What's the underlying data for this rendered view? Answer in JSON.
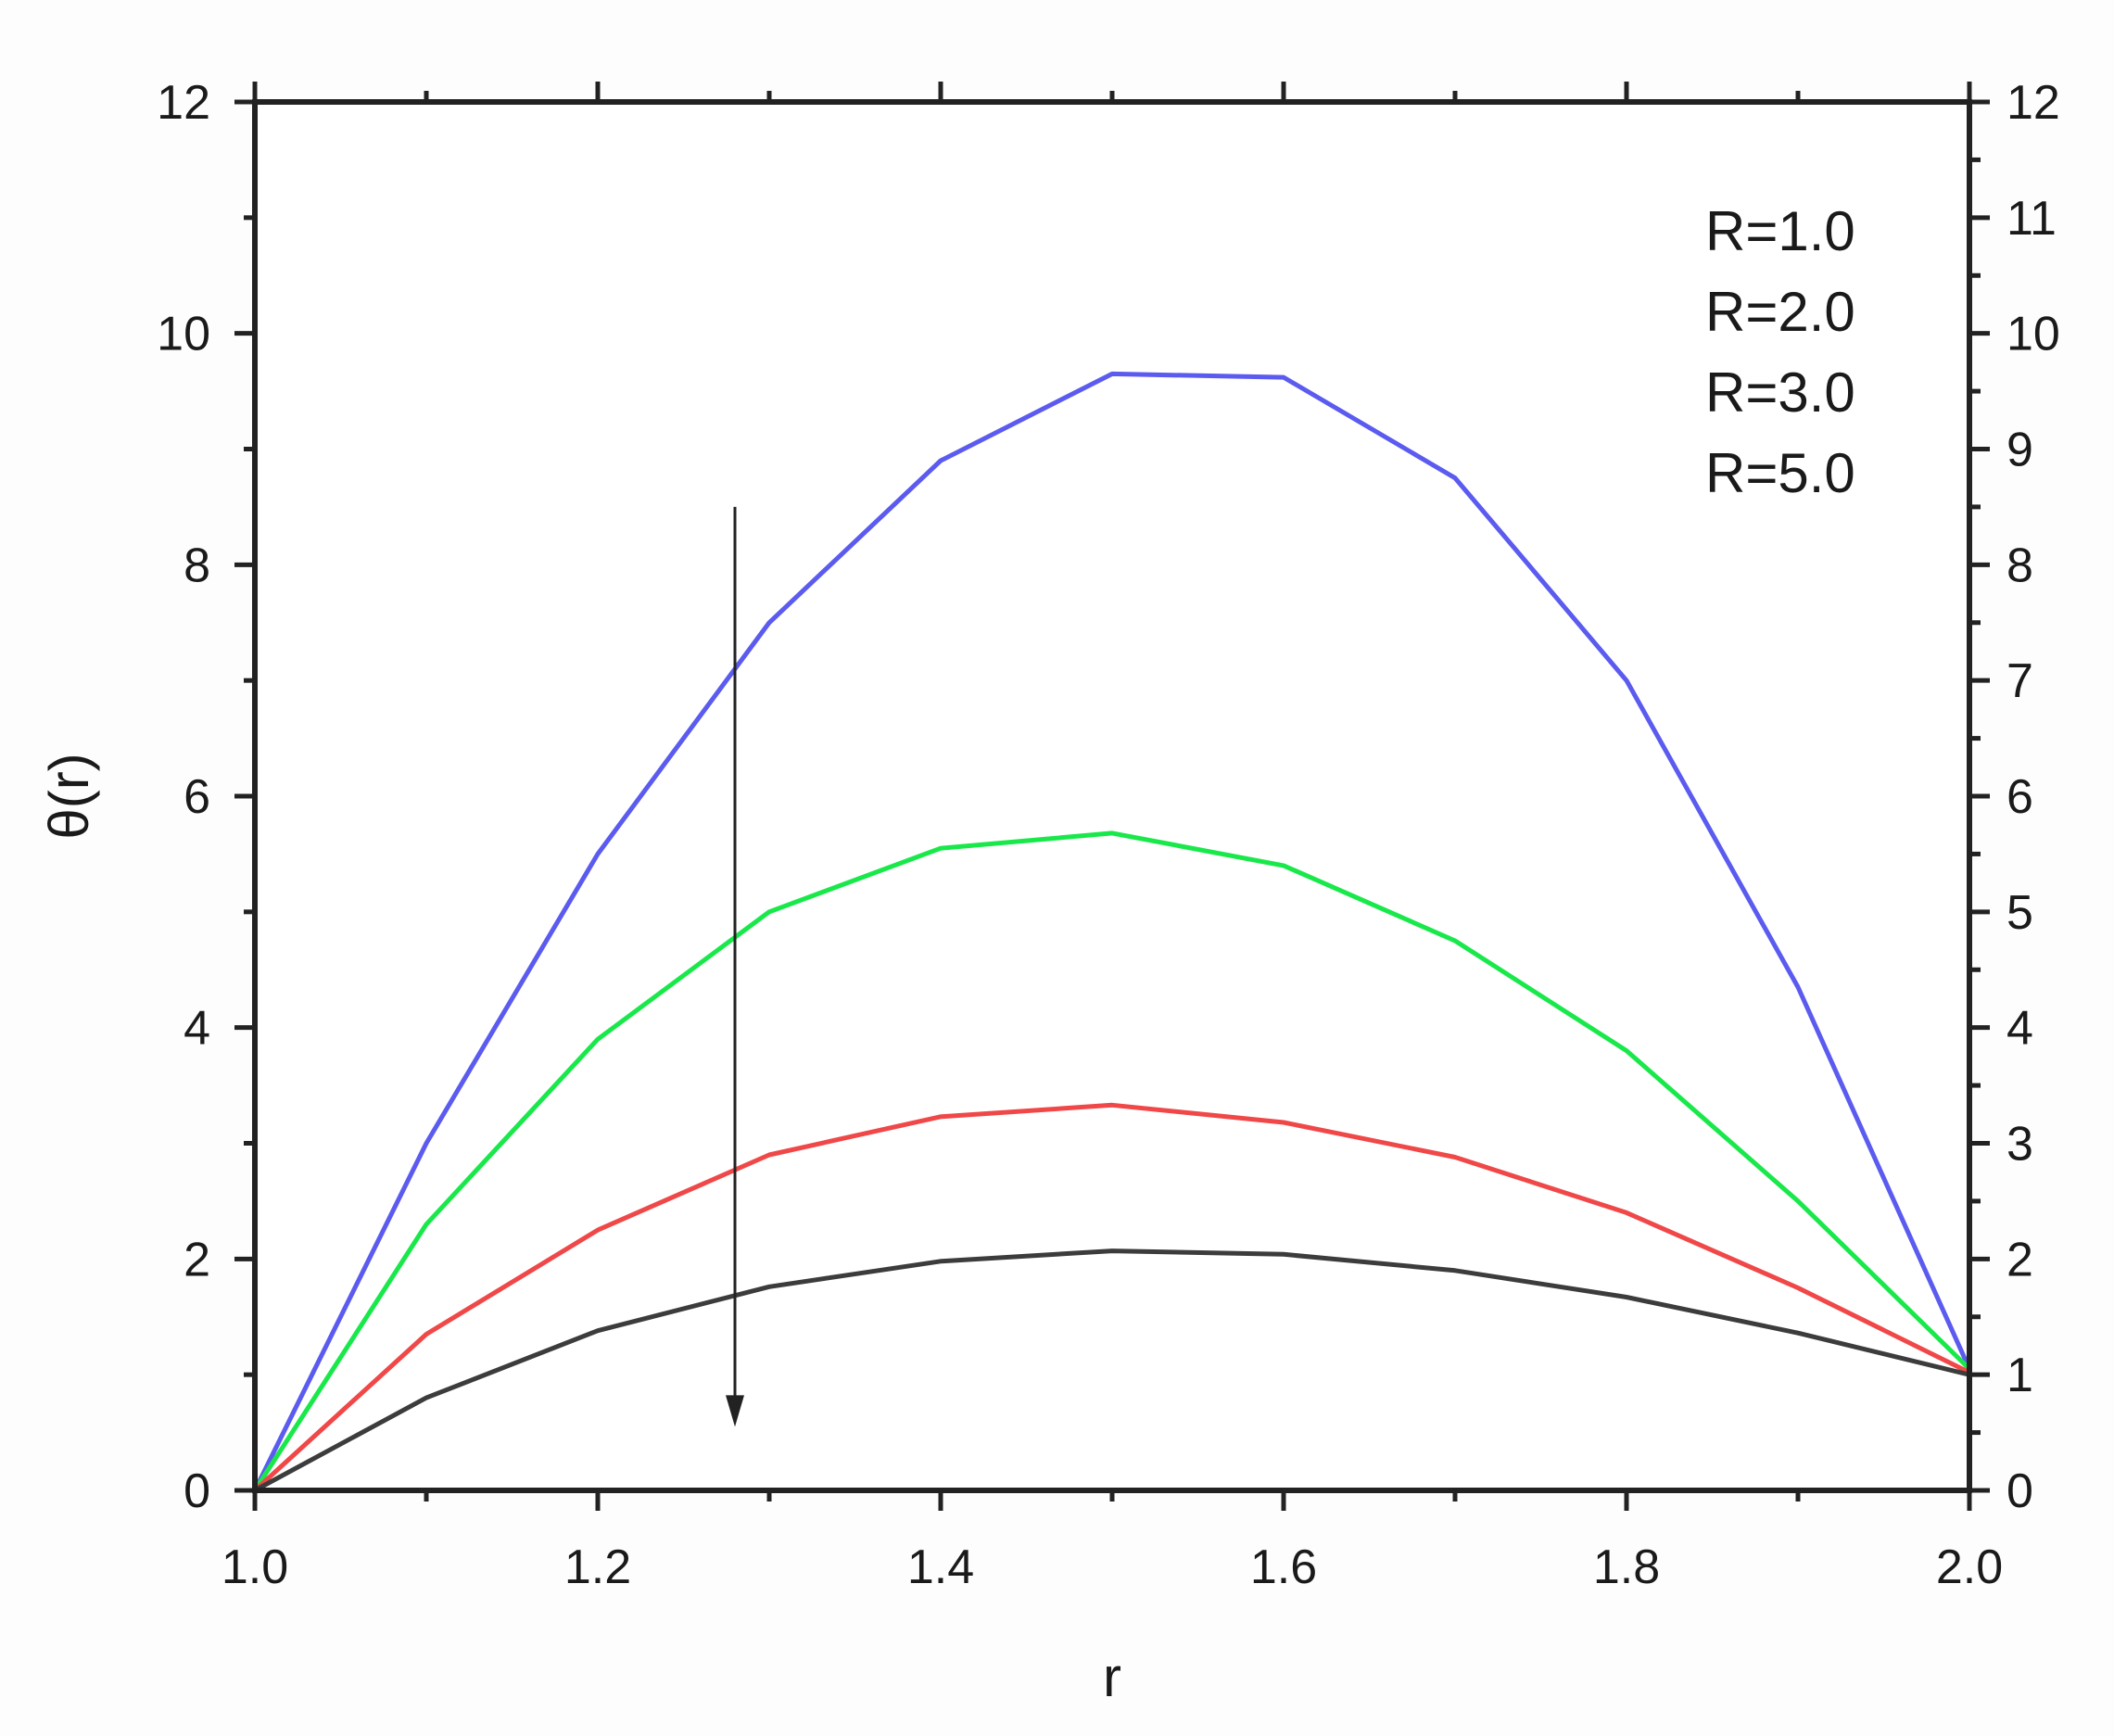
{
  "chart_data": {
    "type": "line",
    "title": "",
    "xlabel": "r",
    "ylabel": "θ(r)",
    "xlim": [
      1.0,
      2.0
    ],
    "ylim": [
      0,
      12
    ],
    "y2lim": [
      0,
      12
    ],
    "grid": false,
    "legend_position": "top-right",
    "x_ticks": [
      "1.0",
      "1.2",
      "1.4",
      "1.6",
      "1.8",
      "2.0"
    ],
    "x_tick_values": [
      1.0,
      1.2,
      1.4,
      1.6,
      1.8,
      2.0
    ],
    "y_ticks": [
      "0",
      "2",
      "4",
      "6",
      "8",
      "10",
      "12"
    ],
    "y_tick_values": [
      0,
      2,
      4,
      6,
      8,
      10,
      12
    ],
    "y2_ticks": [
      "0",
      "1",
      "2",
      "3",
      "4",
      "5",
      "6",
      "7",
      "8",
      "9",
      "10",
      "11",
      "12"
    ],
    "y2_tick_values": [
      0,
      1,
      2,
      3,
      4,
      5,
      6,
      7,
      8,
      9,
      10,
      11,
      12
    ],
    "x": [
      1.0,
      1.1,
      1.2,
      1.3,
      1.4,
      1.5,
      1.6,
      1.7,
      1.8,
      1.9,
      2.0
    ],
    "series": [
      {
        "name": "R=1.0",
        "color": "#5b5bf0",
        "values": [
          0.0,
          3.0,
          5.5,
          7.5,
          8.9,
          9.65,
          9.62,
          8.75,
          7.0,
          4.35,
          1.05
        ]
      },
      {
        "name": "R=2.0",
        "color": "#19e84a",
        "values": [
          0.0,
          2.3,
          3.9,
          5.0,
          5.55,
          5.68,
          5.4,
          4.75,
          3.8,
          2.5,
          1.05
        ]
      },
      {
        "name": "R=3.0",
        "color": "#f04848",
        "values": [
          0.0,
          1.35,
          2.25,
          2.9,
          3.23,
          3.33,
          3.18,
          2.88,
          2.4,
          1.75,
          1.02
        ]
      },
      {
        "name": "R=5.0",
        "color": "#3c3c3c",
        "values": [
          0.0,
          0.8,
          1.38,
          1.76,
          1.98,
          2.07,
          2.04,
          1.9,
          1.67,
          1.36,
          1.0
        ]
      }
    ],
    "annotations": [
      {
        "type": "arrow",
        "x": 1.28,
        "y_from": 8.5,
        "y_to": 0.55,
        "color": "#222222"
      }
    ]
  }
}
